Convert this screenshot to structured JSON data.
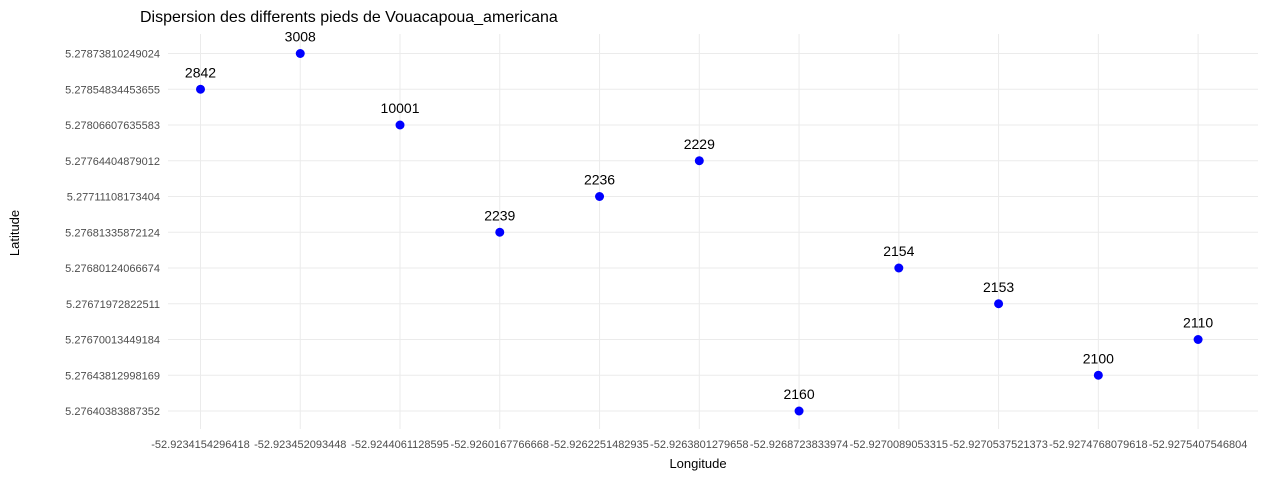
{
  "chart_data": {
    "type": "scatter",
    "title": "Dispersion des differents pieds de Vouacapoua_americana",
    "xlabel": "Longitude",
    "ylabel": "Latitude",
    "point_color": "#0000ff",
    "grid": true,
    "x_categories": [
      "-52.9234154296418",
      "-52.923452093448",
      "-52.9244061128595",
      "-52.9260167766668",
      "-52.9262251482935",
      "-52.9263801279658",
      "-52.9268723833974",
      "-52.9270089053315",
      "-52.9270537521373",
      "-52.9274768079618",
      "-52.9275407546804"
    ],
    "y_categories": [
      "5.27640383887352",
      "5.27643812998169",
      "5.27670013449184",
      "5.27671972822511",
      "5.27680124066674",
      "5.27681335872124",
      "5.27711108173404",
      "5.27764404879012",
      "5.27806607635583",
      "5.27854834453655",
      "5.27873810249024"
    ],
    "points": [
      {
        "x": "-52.9234154296418",
        "y": "5.27854834453655",
        "label": "2842"
      },
      {
        "x": "-52.923452093448",
        "y": "5.27873810249024",
        "label": "3008"
      },
      {
        "x": "-52.9244061128595",
        "y": "5.27806607635583",
        "label": "10001"
      },
      {
        "x": "-52.9260167766668",
        "y": "5.27681335872124",
        "label": "2239"
      },
      {
        "x": "-52.9262251482935",
        "y": "5.27711108173404",
        "label": "2236"
      },
      {
        "x": "-52.9263801279658",
        "y": "5.27764404879012",
        "label": "2229"
      },
      {
        "x": "-52.9268723833974",
        "y": "5.27640383887352",
        "label": "2160"
      },
      {
        "x": "-52.9270089053315",
        "y": "5.27680124066674",
        "label": "2154"
      },
      {
        "x": "-52.9270537521373",
        "y": "5.27671972822511",
        "label": "2153"
      },
      {
        "x": "-52.9274768079618",
        "y": "5.27643812998169",
        "label": "2100"
      },
      {
        "x": "-52.9275407546804",
        "y": "5.27670013449184",
        "label": "2110"
      }
    ]
  }
}
